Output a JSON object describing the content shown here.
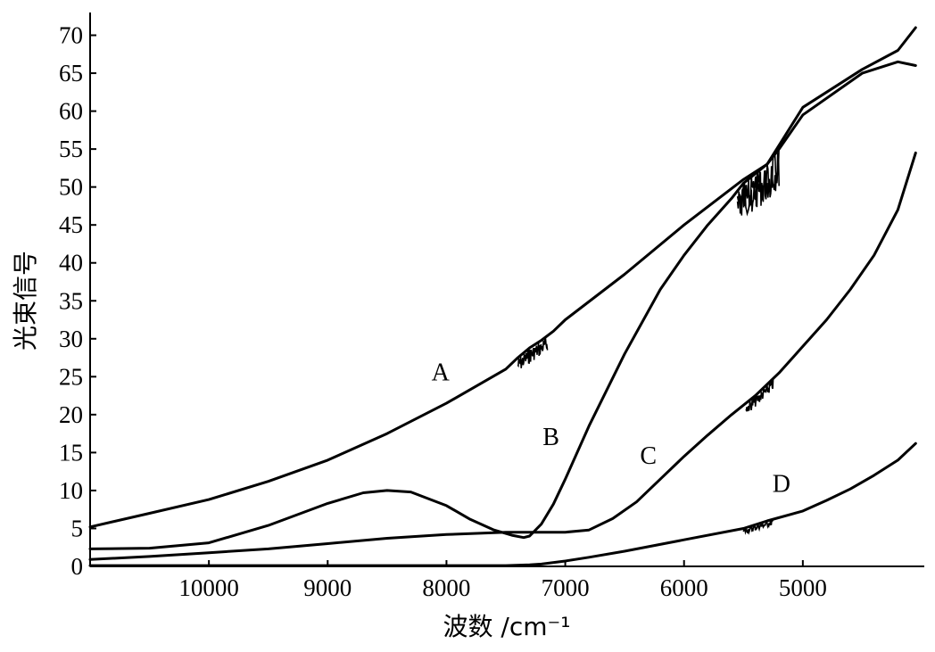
{
  "chart_data": {
    "type": "line",
    "xlabel": "波数 /cm⁻¹",
    "ylabel": "光束信号",
    "xlim": [
      11000,
      4000
    ],
    "ylim": [
      0,
      73
    ],
    "x_ticks": [
      10000,
      9000,
      8000,
      7000,
      6000,
      5000
    ],
    "x_tick_labels": [
      "10000",
      "9000",
      "8000",
      "7000",
      "6000",
      "5000"
    ],
    "y_ticks": [
      0,
      5,
      10,
      15,
      20,
      25,
      30,
      35,
      40,
      45,
      50,
      55,
      60,
      65,
      70
    ],
    "y_tick_labels": [
      "0",
      "5",
      "10",
      "15",
      "20",
      "25",
      "30",
      "35",
      "40",
      "45",
      "50",
      "55",
      "60",
      "65",
      "70"
    ],
    "grid": false,
    "line_color": "#000000",
    "series": [
      {
        "name": "A",
        "x": [
          11000,
          10500,
          10000,
          9500,
          9000,
          8500,
          8000,
          7500,
          7400,
          7300,
          7200,
          7100,
          7000,
          6500,
          6000,
          5500,
          5300,
          5200,
          5000,
          4500,
          4200,
          4050
        ],
        "y": [
          5.2,
          7,
          8.8,
          11.2,
          14,
          17.5,
          21.5,
          26,
          27.5,
          28.8,
          29.8,
          31,
          32.5,
          38.5,
          45,
          51,
          53,
          55.5,
          60.5,
          65.5,
          68,
          71
        ],
        "noise": [
          [
            7400,
            7150,
            28,
            2
          ],
          [
            5550,
            5200,
            51,
            5
          ]
        ]
      },
      {
        "name": "B",
        "x": [
          11000,
          10500,
          10000,
          9500,
          9000,
          8700,
          8500,
          8300,
          8000,
          7800,
          7600,
          7450,
          7350,
          7300,
          7200,
          7100,
          7000,
          6800,
          6500,
          6200,
          6000,
          5800,
          5600,
          5500,
          5300,
          5200,
          5000,
          4500,
          4200,
          4050
        ],
        "y": [
          2.3,
          2.4,
          3.1,
          5.4,
          8.3,
          9.7,
          10,
          9.8,
          8,
          6.2,
          4.8,
          4.1,
          3.8,
          4,
          5.6,
          8.2,
          11.5,
          18.5,
          28,
          36.5,
          41,
          45,
          48.5,
          50.5,
          53,
          55,
          59.5,
          65,
          66.5,
          66
        ],
        "noise": [
          [
            5550,
            5200,
            51,
            5
          ]
        ]
      },
      {
        "name": "C",
        "x": [
          11000,
          10500,
          10000,
          9500,
          9000,
          8500,
          8000,
          7500,
          7000,
          6800,
          6600,
          6400,
          6200,
          6000,
          5800,
          5600,
          5400,
          5200,
          5000,
          4800,
          4600,
          4400,
          4200,
          4050
        ],
        "y": [
          0.9,
          1.3,
          1.8,
          2.3,
          3,
          3.7,
          4.2,
          4.5,
          4.5,
          4.8,
          6.3,
          8.5,
          11.5,
          14.5,
          17.3,
          20,
          22.5,
          25.5,
          29,
          32.5,
          36.5,
          41,
          47,
          54.5
        ],
        "noise": [
          [
            5480,
            5250,
            22.5,
            1.5
          ]
        ]
      },
      {
        "name": "D",
        "x": [
          11000,
          10000,
          9000,
          8000,
          7500,
          7300,
          7200,
          7000,
          6800,
          6500,
          6000,
          5500,
          5300,
          5000,
          4800,
          4600,
          4400,
          4200,
          4050
        ],
        "y": [
          0.1,
          0.1,
          0.1,
          0.1,
          0.1,
          0.2,
          0.3,
          0.7,
          1.2,
          2,
          3.5,
          5,
          6,
          7.3,
          8.7,
          10.2,
          12,
          14,
          16.2
        ],
        "noise": [
          [
            5500,
            5250,
            5.8,
            0.8
          ]
        ]
      }
    ],
    "annotations": [
      {
        "text": "A",
        "x": 8050,
        "y": 24.5
      },
      {
        "text": "B",
        "x": 7120,
        "y": 16
      },
      {
        "text": "C",
        "x": 6300,
        "y": 13.5
      },
      {
        "text": "D",
        "x": 5180,
        "y": 9.8
      }
    ]
  }
}
